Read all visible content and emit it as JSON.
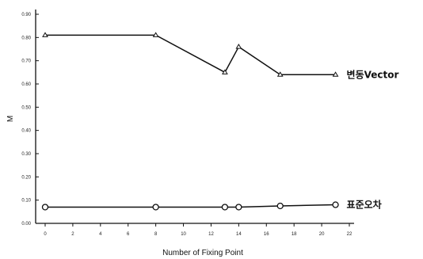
{
  "chart_data": {
    "type": "line",
    "xlabel": "Number of Fixing Point",
    "ylabel": "M",
    "xlim": [
      0,
      22
    ],
    "ylim": [
      0.0,
      0.9
    ],
    "x_ticks": [
      "0",
      "2",
      "4",
      "6",
      "8",
      "10",
      "12",
      "14",
      "16",
      "18",
      "20",
      "22"
    ],
    "y_ticks": [
      "0.00",
      "0.10",
      "0.20",
      "0.30",
      "0.40",
      "0.50",
      "0.60",
      "0.70",
      "0.80",
      "0.90"
    ],
    "grid": false,
    "series": [
      {
        "name": "변동Vector",
        "marker": "triangle",
        "x": [
          0,
          8,
          13,
          14,
          17,
          21
        ],
        "y": [
          0.81,
          0.81,
          0.65,
          0.76,
          0.64,
          0.64
        ]
      },
      {
        "name": "표준오차",
        "marker": "circle",
        "x": [
          0,
          8,
          13,
          14,
          17,
          21
        ],
        "y": [
          0.07,
          0.07,
          0.07,
          0.07,
          0.075,
          0.08
        ]
      }
    ]
  }
}
